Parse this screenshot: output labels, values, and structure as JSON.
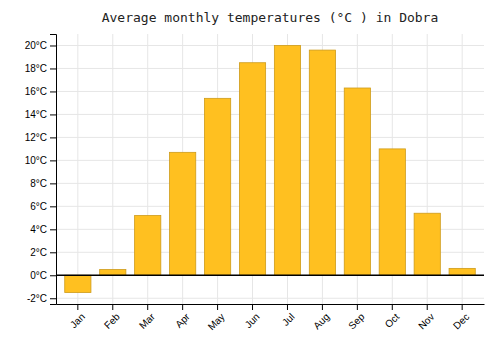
{
  "chart_data": {
    "type": "bar",
    "title": "Average monthly temperatures (°C ) in Dobra",
    "categories": [
      "Jan",
      "Feb",
      "Mar",
      "Apr",
      "May",
      "Jun",
      "Jul",
      "Aug",
      "Sep",
      "Oct",
      "Nov",
      "Dec"
    ],
    "values": [
      -1.5,
      0.5,
      5.2,
      10.7,
      15.4,
      18.5,
      20.0,
      19.6,
      16.3,
      11.0,
      5.4,
      0.6
    ],
    "color": "#FFC020",
    "ylim": [
      -2.5,
      21
    ],
    "yticks": [
      {
        "value": -2,
        "label": "-2°C"
      },
      {
        "value": 0,
        "label": "0°C"
      },
      {
        "value": 2,
        "label": "2°C"
      },
      {
        "value": 4,
        "label": "4°C"
      },
      {
        "value": 6,
        "label": "6°C"
      },
      {
        "value": 8,
        "label": "8°C"
      },
      {
        "value": 10,
        "label": "10°C"
      },
      {
        "value": 12,
        "label": "12°C"
      },
      {
        "value": 14,
        "label": "14°C"
      },
      {
        "value": 16,
        "label": "16°C"
      },
      {
        "value": 18,
        "label": "18°C"
      },
      {
        "value": 20,
        "label": "20°C"
      }
    ],
    "grid": true
  }
}
